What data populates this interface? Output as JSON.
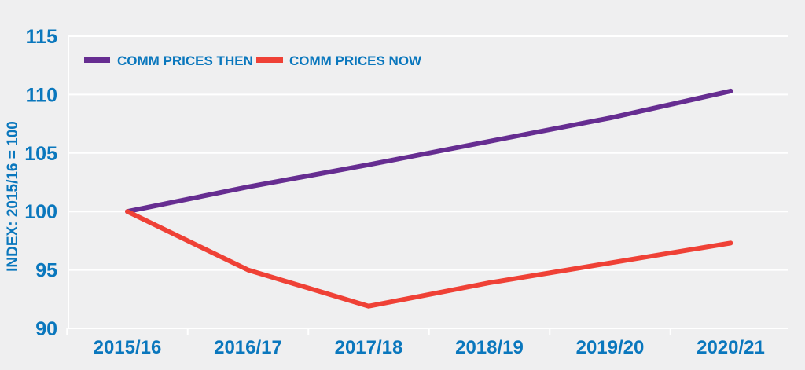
{
  "chart_data": {
    "type": "line",
    "categories": [
      "2015/16",
      "2016/17",
      "2017/18",
      "2018/19",
      "2019/20",
      "2020/21"
    ],
    "series": [
      {
        "name": "COMM PRICES THEN",
        "color": "#662d91",
        "values": [
          100,
          102.1,
          104,
          106,
          108,
          110.3
        ]
      },
      {
        "name": "COMM PRICES NOW",
        "color": "#ef4136",
        "values": [
          100,
          95,
          91.9,
          93.9,
          95.6,
          97.3
        ]
      }
    ],
    "ylabel": "INDEX: 2015/16 = 100",
    "ylim": [
      90,
      115
    ],
    "yticks": [
      90,
      95,
      100,
      105,
      110,
      115
    ],
    "grid": true,
    "legend": "top-left",
    "colors": {
      "axis_text": "#0a77bd",
      "grid": "#ffffff",
      "background": "#efeff0"
    }
  }
}
